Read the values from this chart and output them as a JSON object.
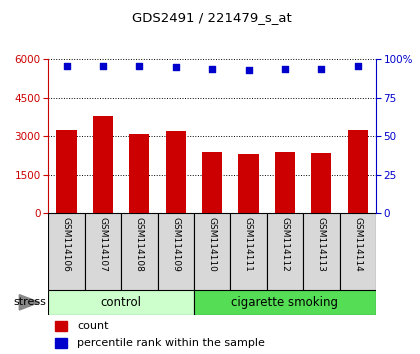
{
  "title": "GDS2491 / 221479_s_at",
  "samples": [
    "GSM114106",
    "GSM114107",
    "GSM114108",
    "GSM114109",
    "GSM114110",
    "GSM114111",
    "GSM114112",
    "GSM114113",
    "GSM114114"
  ],
  "counts": [
    3250,
    3800,
    3100,
    3200,
    2400,
    2300,
    2400,
    2350,
    3250
  ],
  "percentiles": [
    96,
    96,
    96,
    95,
    94,
    93,
    94,
    94,
    96
  ],
  "groups": [
    {
      "label": "control",
      "start": 0,
      "end": 4,
      "color": "#ccffcc"
    },
    {
      "label": "cigarette smoking",
      "start": 4,
      "end": 9,
      "color": "#55dd55"
    }
  ],
  "stress_label": "stress",
  "count_color": "#cc0000",
  "percentile_color": "#0000cc",
  "bar_color": "#cc0000",
  "dot_color": "#0000cc",
  "ylim_left": [
    0,
    6000
  ],
  "ylim_right": [
    0,
    100
  ],
  "yticks_left": [
    0,
    1500,
    3000,
    4500,
    6000
  ],
  "yticks_right": [
    0,
    25,
    50,
    75,
    100
  ],
  "bar_width": 0.55,
  "bg_color": "#ffffff",
  "tick_area_color": "#cccccc",
  "tick_box_color": "#d8d8d8"
}
